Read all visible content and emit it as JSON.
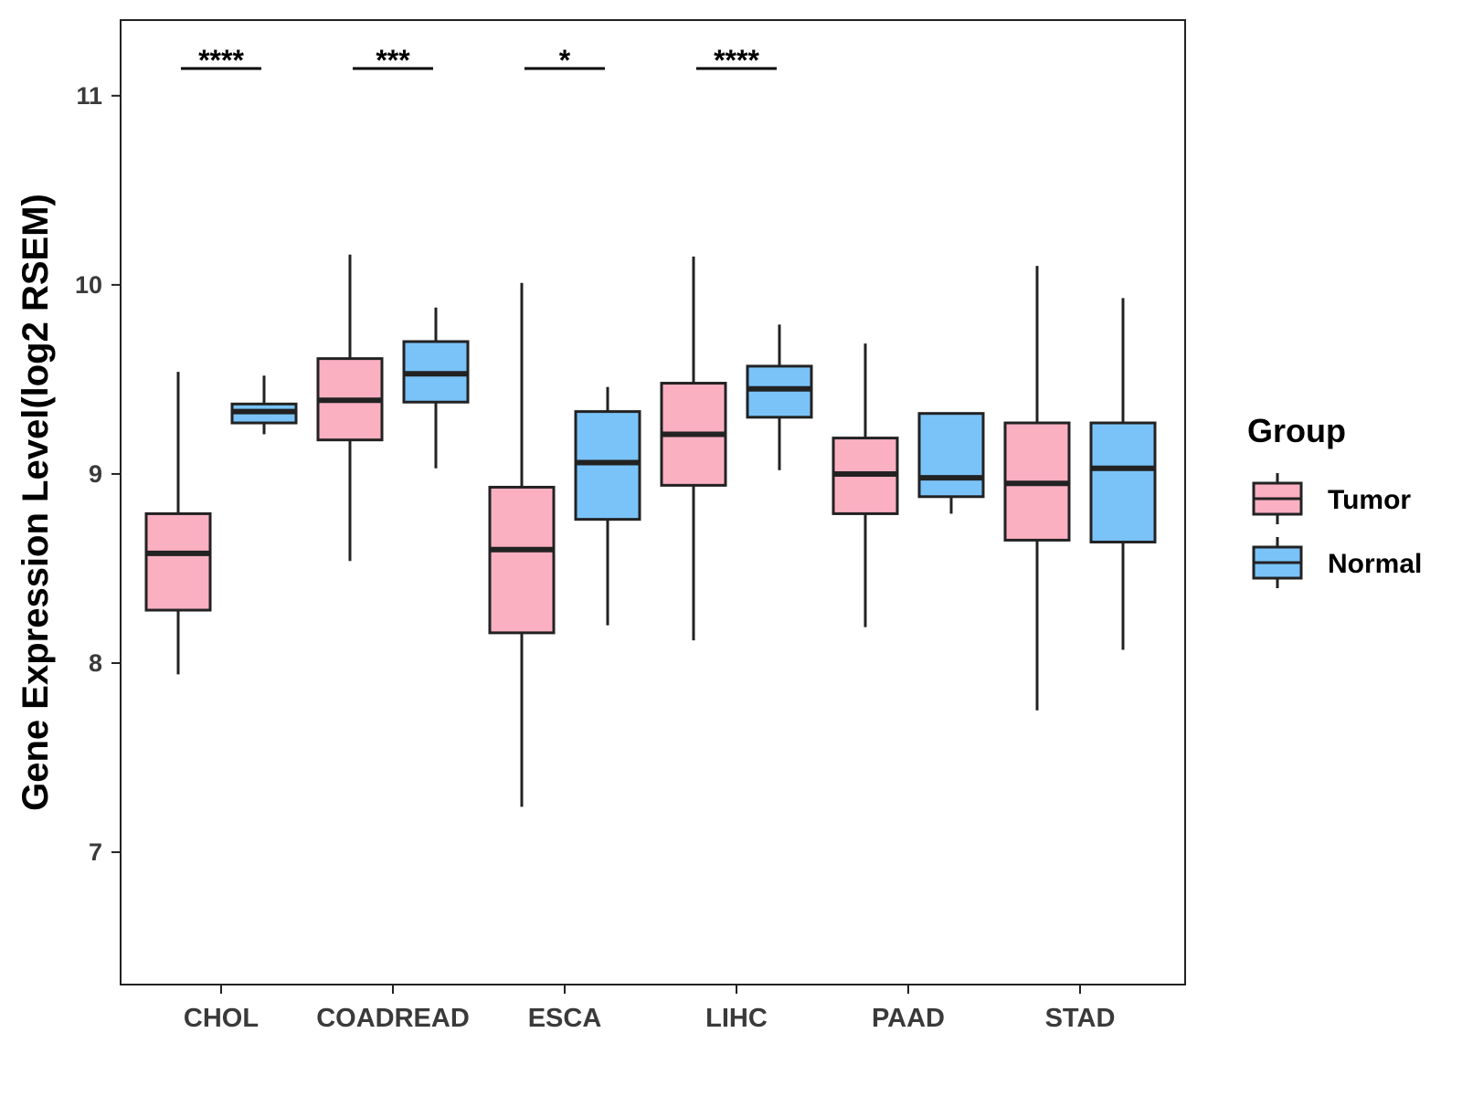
{
  "chart_data": {
    "type": "boxplot",
    "title": "",
    "xlabel": "",
    "ylabel": "Gene Expression Level(log2 RSEM)",
    "ylim": [
      6.3,
      11.4
    ],
    "yticks": [
      7,
      8,
      9,
      10,
      11
    ],
    "categories": [
      "CHOL",
      "COADREAD",
      "ESCA",
      "LIHC",
      "PAAD",
      "STAD"
    ],
    "legend": {
      "title": "Group",
      "position": "right",
      "entries": [
        {
          "name": "Tumor",
          "color": "#FBB0C2"
        },
        {
          "name": "Normal",
          "color": "#7AC3F8"
        }
      ]
    },
    "series": [
      {
        "name": "Tumor",
        "color": "#FBB0C2",
        "boxes": [
          {
            "category": "CHOL",
            "whisker_low": 7.94,
            "q1": 8.28,
            "median": 8.58,
            "q3": 8.79,
            "whisker_high": 9.54
          },
          {
            "category": "COADREAD",
            "whisker_low": 8.54,
            "q1": 9.18,
            "median": 9.39,
            "q3": 9.61,
            "whisker_high": 10.16
          },
          {
            "category": "ESCA",
            "whisker_low": 7.24,
            "q1": 8.16,
            "median": 8.6,
            "q3": 8.93,
            "whisker_high": 10.01
          },
          {
            "category": "LIHC",
            "whisker_low": 8.12,
            "q1": 8.94,
            "median": 9.21,
            "q3": 9.48,
            "whisker_high": 10.15
          },
          {
            "category": "PAAD",
            "whisker_low": 8.19,
            "q1": 8.79,
            "median": 9.0,
            "q3": 9.19,
            "whisker_high": 9.69
          },
          {
            "category": "STAD",
            "whisker_low": 7.75,
            "q1": 8.65,
            "median": 8.95,
            "q3": 9.27,
            "whisker_high": 10.1
          }
        ]
      },
      {
        "name": "Normal",
        "color": "#7AC3F8",
        "boxes": [
          {
            "category": "CHOL",
            "whisker_low": 9.21,
            "q1": 9.27,
            "median": 9.33,
            "q3": 9.37,
            "whisker_high": 9.52
          },
          {
            "category": "COADREAD",
            "whisker_low": 9.03,
            "q1": 9.38,
            "median": 9.53,
            "q3": 9.7,
            "whisker_high": 9.88
          },
          {
            "category": "ESCA",
            "whisker_low": 8.2,
            "q1": 8.76,
            "median": 9.06,
            "q3": 9.33,
            "whisker_high": 9.46
          },
          {
            "category": "LIHC",
            "whisker_low": 9.02,
            "q1": 9.3,
            "median": 9.45,
            "q3": 9.57,
            "whisker_high": 9.79
          },
          {
            "category": "PAAD",
            "whisker_low": 8.79,
            "q1": 8.88,
            "median": 8.98,
            "q3": 9.32,
            "whisker_high": 9.32
          },
          {
            "category": "STAD",
            "whisker_low": 8.07,
            "q1": 8.64,
            "median": 9.03,
            "q3": 9.27,
            "whisker_high": 9.93
          }
        ]
      }
    ],
    "significance": [
      {
        "category": "CHOL",
        "label": "****"
      },
      {
        "category": "COADREAD",
        "label": "***"
      },
      {
        "category": "ESCA",
        "label": "*"
      },
      {
        "category": "LIHC",
        "label": "****"
      }
    ]
  }
}
